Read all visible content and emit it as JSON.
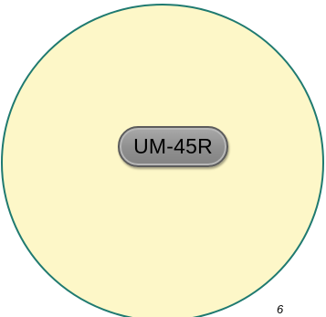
{
  "diagram": {
    "node_label": "UM-45R",
    "page_number": "6",
    "colors": {
      "circle_fill": "#fdf7c8",
      "circle_stroke": "#1f7a70",
      "pill_fill": "#9a9a9a",
      "pill_stroke": "#5c5c5c"
    }
  }
}
